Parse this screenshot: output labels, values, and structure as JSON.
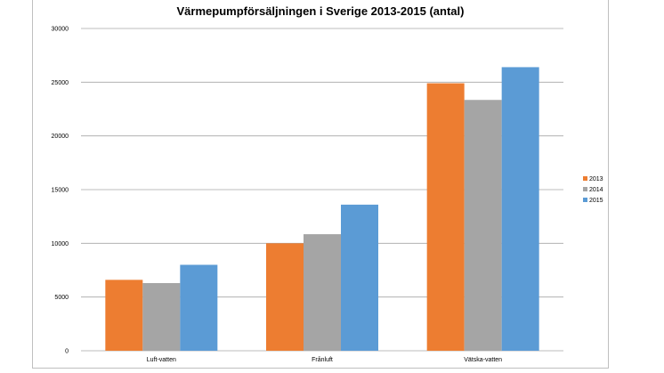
{
  "chart_data": {
    "type": "bar",
    "title": "Värmepumpförsäljningen i Sverige 2013-2015 (antal)",
    "xlabel": "",
    "ylabel": "",
    "categories": [
      "Luft-vatten",
      "Frånluft",
      "Vätska-vatten"
    ],
    "series": [
      {
        "name": "2013",
        "color": "#ed7d31",
        "values": [
          6600,
          10000,
          24900
        ]
      },
      {
        "name": "2014",
        "color": "#a5a5a5",
        "values": [
          6300,
          10850,
          23350
        ]
      },
      {
        "name": "2015",
        "color": "#5b9bd5",
        "values": [
          8000,
          13600,
          26400
        ]
      }
    ],
    "ylim": [
      0,
      30000
    ],
    "yticks": [
      "0",
      "5000",
      "10000",
      "15000",
      "20000",
      "25000",
      "30000"
    ],
    "grid": true,
    "legend_position": "right"
  }
}
